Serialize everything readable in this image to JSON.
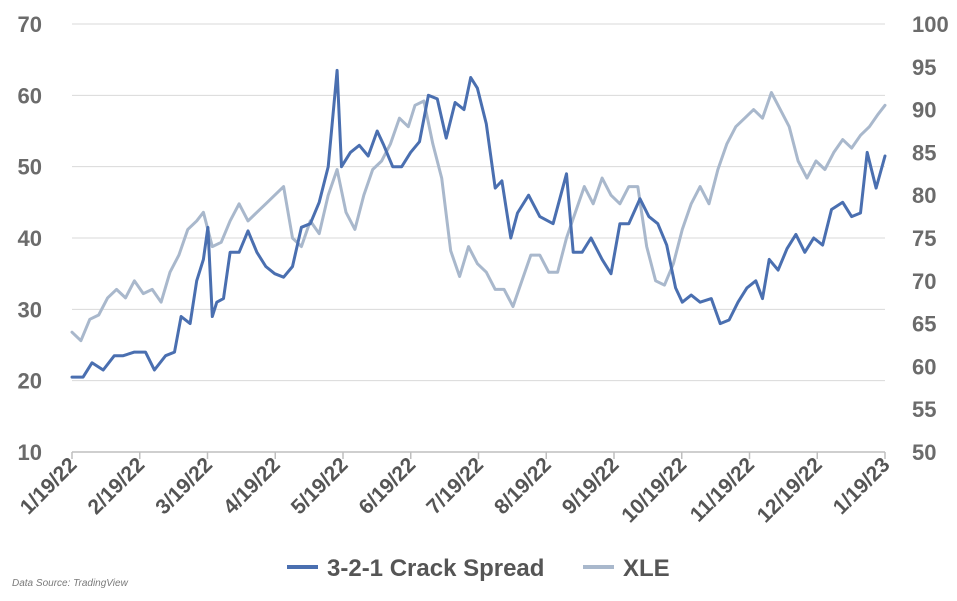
{
  "chart_data": {
    "type": "line",
    "x_tick_labels": [
      "1/19/22",
      "2/19/22",
      "3/19/22",
      "4/19/22",
      "5/19/22",
      "6/19/22",
      "7/19/22",
      "8/19/22",
      "9/19/22",
      "10/19/22",
      "11/19/22",
      "12/19/22",
      "1/19/23"
    ],
    "y_left": {
      "lim": [
        10,
        70
      ],
      "ticks": [
        10,
        20,
        30,
        40,
        50,
        60,
        70
      ]
    },
    "y_right": {
      "lim": [
        50,
        100
      ],
      "ticks": [
        50,
        55,
        60,
        65,
        70,
        75,
        80,
        85,
        90,
        95,
        100
      ]
    },
    "grid": "horizontal",
    "legend_position": "bottom",
    "colors": {
      "crack": "#4a6fb0",
      "xle": "#a9b8cc",
      "grid": "#d9d9d9",
      "axis": "#bfbfbf"
    },
    "series": [
      {
        "name": "3-2-1 Crack Spread",
        "axis": "left",
        "color": "#4a6fb0",
        "points": [
          [
            "2022-01-19",
            20.5
          ],
          [
            "2022-01-24",
            20.5
          ],
          [
            "2022-01-28",
            22.5
          ],
          [
            "2022-02-02",
            21.5
          ],
          [
            "2022-02-07",
            23.5
          ],
          [
            "2022-02-11",
            23.5
          ],
          [
            "2022-02-16",
            24
          ],
          [
            "2022-02-21",
            24
          ],
          [
            "2022-02-25",
            21.5
          ],
          [
            "2022-03-02",
            23.5
          ],
          [
            "2022-03-06",
            24
          ],
          [
            "2022-03-09",
            29
          ],
          [
            "2022-03-13",
            28
          ],
          [
            "2022-03-16",
            34
          ],
          [
            "2022-03-19",
            37
          ],
          [
            "2022-03-21",
            41.5
          ],
          [
            "2022-03-23",
            29
          ],
          [
            "2022-03-25",
            31
          ],
          [
            "2022-03-28",
            31.5
          ],
          [
            "2022-03-31",
            38
          ],
          [
            "2022-04-04",
            38
          ],
          [
            "2022-04-08",
            41
          ],
          [
            "2022-04-12",
            38
          ],
          [
            "2022-04-16",
            36
          ],
          [
            "2022-04-20",
            35
          ],
          [
            "2022-04-24",
            34.5
          ],
          [
            "2022-04-28",
            36
          ],
          [
            "2022-05-02",
            41.5
          ],
          [
            "2022-05-06",
            42
          ],
          [
            "2022-05-10",
            45
          ],
          [
            "2022-05-14",
            50
          ],
          [
            "2022-05-18",
            63.5
          ],
          [
            "2022-05-20",
            50
          ],
          [
            "2022-05-24",
            52
          ],
          [
            "2022-05-28",
            53
          ],
          [
            "2022-06-01",
            51.5
          ],
          [
            "2022-06-05",
            55
          ],
          [
            "2022-06-08",
            53
          ],
          [
            "2022-06-12",
            50
          ],
          [
            "2022-06-16",
            50
          ],
          [
            "2022-06-20",
            52
          ],
          [
            "2022-06-24",
            53.5
          ],
          [
            "2022-06-28",
            60
          ],
          [
            "2022-07-02",
            59.5
          ],
          [
            "2022-07-06",
            54
          ],
          [
            "2022-07-10",
            59
          ],
          [
            "2022-07-14",
            58
          ],
          [
            "2022-07-17",
            62.5
          ],
          [
            "2022-07-20",
            61
          ],
          [
            "2022-07-24",
            56
          ],
          [
            "2022-07-28",
            47
          ],
          [
            "2022-07-31",
            48
          ],
          [
            "2022-08-04",
            40
          ],
          [
            "2022-08-07",
            43.5
          ],
          [
            "2022-08-12",
            46
          ],
          [
            "2022-08-17",
            43
          ],
          [
            "2022-08-23",
            42
          ],
          [
            "2022-08-29",
            49
          ],
          [
            "2022-09-01",
            38
          ],
          [
            "2022-09-05",
            38
          ],
          [
            "2022-09-09",
            40
          ],
          [
            "2022-09-14",
            37
          ],
          [
            "2022-09-18",
            35
          ],
          [
            "2022-09-22",
            42
          ],
          [
            "2022-09-26",
            42
          ],
          [
            "2022-10-01",
            45.5
          ],
          [
            "2022-10-05",
            43
          ],
          [
            "2022-10-09",
            42
          ],
          [
            "2022-10-13",
            39
          ],
          [
            "2022-10-17",
            33
          ],
          [
            "2022-10-20",
            31
          ],
          [
            "2022-10-24",
            32
          ],
          [
            "2022-10-28",
            31
          ],
          [
            "2022-11-02",
            31.5
          ],
          [
            "2022-11-06",
            28
          ],
          [
            "2022-11-10",
            28.5
          ],
          [
            "2022-11-14",
            31
          ],
          [
            "2022-11-18",
            33
          ],
          [
            "2022-11-22",
            34
          ],
          [
            "2022-11-25",
            31.5
          ],
          [
            "2022-11-28",
            37
          ],
          [
            "2022-12-02",
            35.5
          ],
          [
            "2022-12-06",
            38.5
          ],
          [
            "2022-12-10",
            40.5
          ],
          [
            "2022-12-14",
            38
          ],
          [
            "2022-12-18",
            40
          ],
          [
            "2022-12-22",
            39
          ],
          [
            "2022-12-26",
            44
          ],
          [
            "2022-12-31",
            45
          ],
          [
            "2023-01-04",
            43
          ],
          [
            "2023-01-08",
            43.5
          ],
          [
            "2023-01-11",
            52
          ],
          [
            "2023-01-15",
            47
          ],
          [
            "2023-01-19",
            51.5
          ]
        ]
      },
      {
        "name": "XLE",
        "axis": "right",
        "color": "#a9b8cc",
        "points": [
          [
            "2022-01-19",
            64
          ],
          [
            "2022-01-23",
            63
          ],
          [
            "2022-01-27",
            65.5
          ],
          [
            "2022-01-31",
            66
          ],
          [
            "2022-02-04",
            68
          ],
          [
            "2022-02-08",
            69
          ],
          [
            "2022-02-12",
            68
          ],
          [
            "2022-02-16",
            70
          ],
          [
            "2022-02-20",
            68.5
          ],
          [
            "2022-02-24",
            69
          ],
          [
            "2022-02-28",
            67.5
          ],
          [
            "2022-03-04",
            71
          ],
          [
            "2022-03-08",
            73
          ],
          [
            "2022-03-12",
            76
          ],
          [
            "2022-03-16",
            77
          ],
          [
            "2022-03-19",
            78
          ],
          [
            "2022-03-23",
            74
          ],
          [
            "2022-03-27",
            74.5
          ],
          [
            "2022-03-31",
            77
          ],
          [
            "2022-04-04",
            79
          ],
          [
            "2022-04-08",
            77
          ],
          [
            "2022-04-12",
            78
          ],
          [
            "2022-04-16",
            79
          ],
          [
            "2022-04-20",
            80
          ],
          [
            "2022-04-24",
            81
          ],
          [
            "2022-04-28",
            75
          ],
          [
            "2022-05-02",
            74
          ],
          [
            "2022-05-06",
            77
          ],
          [
            "2022-05-10",
            75.5
          ],
          [
            "2022-05-14",
            80
          ],
          [
            "2022-05-18",
            83
          ],
          [
            "2022-05-22",
            78
          ],
          [
            "2022-05-26",
            76
          ],
          [
            "2022-05-30",
            80
          ],
          [
            "2022-06-03",
            83
          ],
          [
            "2022-06-07",
            84
          ],
          [
            "2022-06-11",
            86
          ],
          [
            "2022-06-15",
            89
          ],
          [
            "2022-06-19",
            88
          ],
          [
            "2022-06-22",
            90.5
          ],
          [
            "2022-06-26",
            91
          ],
          [
            "2022-06-30",
            86
          ],
          [
            "2022-07-04",
            82
          ],
          [
            "2022-07-08",
            73.5
          ],
          [
            "2022-07-12",
            70.5
          ],
          [
            "2022-07-16",
            74
          ],
          [
            "2022-07-20",
            72
          ],
          [
            "2022-07-24",
            71
          ],
          [
            "2022-07-28",
            69
          ],
          [
            "2022-08-01",
            69
          ],
          [
            "2022-08-05",
            67
          ],
          [
            "2022-08-09",
            70
          ],
          [
            "2022-08-13",
            73
          ],
          [
            "2022-08-17",
            73
          ],
          [
            "2022-08-21",
            71
          ],
          [
            "2022-08-25",
            71
          ],
          [
            "2022-08-29",
            75
          ],
          [
            "2022-09-02",
            78
          ],
          [
            "2022-09-06",
            81
          ],
          [
            "2022-09-10",
            79
          ],
          [
            "2022-09-14",
            82
          ],
          [
            "2022-09-18",
            80
          ],
          [
            "2022-09-22",
            79
          ],
          [
            "2022-09-26",
            81
          ],
          [
            "2022-09-30",
            81
          ],
          [
            "2022-10-04",
            74
          ],
          [
            "2022-10-08",
            70
          ],
          [
            "2022-10-12",
            69.5
          ],
          [
            "2022-10-16",
            72
          ],
          [
            "2022-10-20",
            76
          ],
          [
            "2022-10-24",
            79
          ],
          [
            "2022-10-28",
            81
          ],
          [
            "2022-11-01",
            79
          ],
          [
            "2022-11-05",
            83
          ],
          [
            "2022-11-09",
            86
          ],
          [
            "2022-11-13",
            88
          ],
          [
            "2022-11-17",
            89
          ],
          [
            "2022-11-21",
            90
          ],
          [
            "2022-11-25",
            89
          ],
          [
            "2022-11-29",
            92
          ],
          [
            "2022-12-03",
            90
          ],
          [
            "2022-12-07",
            88
          ],
          [
            "2022-12-11",
            84
          ],
          [
            "2022-12-15",
            82
          ],
          [
            "2022-12-19",
            84
          ],
          [
            "2022-12-23",
            83
          ],
          [
            "2022-12-27",
            85
          ],
          [
            "2022-12-31",
            86.5
          ],
          [
            "2023-01-04",
            85.5
          ],
          [
            "2023-01-08",
            87
          ],
          [
            "2023-01-12",
            88
          ],
          [
            "2023-01-16",
            89.5
          ],
          [
            "2023-01-19",
            90.5
          ]
        ]
      }
    ],
    "legend": [
      "3-2-1 Crack Spread",
      "XLE"
    ]
  },
  "source_note": "Data Source: TradingView"
}
